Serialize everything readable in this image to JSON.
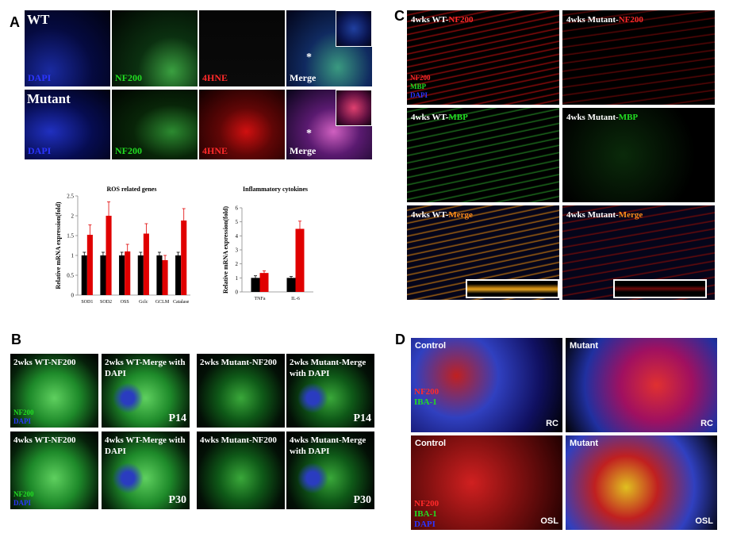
{
  "panel_labels": [
    "A",
    "B",
    "C",
    "D"
  ],
  "panel_a": {
    "marker": "*",
    "rows": [
      {
        "label": "WT",
        "channels": [
          {
            "text": "DAPI",
            "color": "#2b35ff"
          },
          {
            "text": "NF200",
            "color": "#22dd22"
          },
          {
            "text": "4HNE",
            "color": "#ff2a2a"
          },
          {
            "text": "Merge",
            "color": "#ffffff"
          }
        ]
      },
      {
        "label": "Mutant",
        "channels": [
          {
            "text": "DAPI",
            "color": "#2b35ff"
          },
          {
            "text": "NF200",
            "color": "#22dd22"
          },
          {
            "text": "4HNE",
            "color": "#ff2a2a"
          },
          {
            "text": "Merge",
            "color": "#ffffff"
          }
        ]
      }
    ]
  },
  "chart_data": [
    {
      "type": "bar",
      "title": "ROS related genes",
      "y_label": "Relative mRNA expression(fold)",
      "categories": [
        "SOD1",
        "SOD2",
        "OSS",
        "Gclc",
        "GCLM",
        "Catalase"
      ],
      "series": [
        {
          "color": "#000000",
          "values": [
            1,
            1,
            1,
            1,
            1,
            1
          ],
          "errors": [
            0.08,
            0.08,
            0.08,
            0.08,
            0.08,
            0.08
          ]
        },
        {
          "color": "#e00000",
          "values": [
            1.52,
            2.0,
            1.1,
            1.55,
            0.88,
            1.88
          ],
          "errors": [
            0.25,
            0.35,
            0.18,
            0.25,
            0.12,
            0.3
          ]
        }
      ],
      "ylim": [
        0,
        2.5
      ],
      "yticks": [
        0,
        0.5,
        1,
        1.5,
        2,
        2.5
      ]
    },
    {
      "type": "bar",
      "title": "Inflammatory cytokines",
      "y_label": "Relative mRNA expression(fold)",
      "categories": [
        "TNFa",
        "IL-6"
      ],
      "series": [
        {
          "color": "#000000",
          "values": [
            1,
            1
          ],
          "errors": [
            0.15,
            0.1
          ]
        },
        {
          "color": "#e00000",
          "values": [
            1.35,
            4.5
          ],
          "errors": [
            0.15,
            0.55
          ]
        }
      ],
      "ylim": [
        0,
        6
      ],
      "yticks": [
        0,
        1,
        2,
        3,
        4,
        5,
        6
      ]
    }
  ],
  "panel_b": {
    "images": [
      {
        "title": "2wks WT-NF200",
        "legend": [
          {
            "text": "NF200",
            "color": "#22dd22"
          },
          {
            "text": "DAPI",
            "color": "#2b35ff"
          }
        ]
      },
      {
        "title": "2wks WT-Merge with DAPI",
        "stage": "P14"
      },
      {
        "title": "2wks Mutant-NF200"
      },
      {
        "title": "2wks Mutant-Merge with DAPI",
        "stage": "P14"
      },
      {
        "title": "4wks WT-NF200",
        "legend": [
          {
            "text": "NF200",
            "color": "#22dd22"
          },
          {
            "text": "DAPI",
            "color": "#2b35ff"
          }
        ]
      },
      {
        "title": "4wks WT-Merge with DAPI",
        "stage": "P30"
      },
      {
        "title": "4wks Mutant-NF200"
      },
      {
        "title": "4wks Mutant-Merge with DAPI",
        "stage": "P30"
      }
    ]
  },
  "panel_c": {
    "images": [
      {
        "prefix": "4wks WT-",
        "marker": {
          "text": "NF200",
          "color": "#ff2a2a"
        },
        "legend": [
          {
            "text": "NF200",
            "color": "#ff2a2a"
          },
          {
            "text": "MBP",
            "color": "#22dd22"
          },
          {
            "text": "DAPI",
            "color": "#2b35ff"
          }
        ]
      },
      {
        "prefix": "4wks Mutant-",
        "marker": {
          "text": "NF200",
          "color": "#ff2a2a"
        }
      },
      {
        "prefix": "4wks WT-",
        "marker": {
          "text": "MBP",
          "color": "#22dd22"
        }
      },
      {
        "prefix": "4wks Mutant-",
        "marker": {
          "text": "MBP",
          "color": "#22dd22"
        }
      },
      {
        "prefix": "4wks WT-",
        "marker": {
          "text": "Merge",
          "color": "#ff8c1a"
        }
      },
      {
        "prefix": "4wks Mutant-",
        "marker": {
          "text": "Merge",
          "color": "#ff8c1a"
        }
      }
    ]
  },
  "panel_d": {
    "images": [
      {
        "group": "Control",
        "site": "RC",
        "legend": [
          {
            "text": "NF200",
            "color": "#ff2a2a"
          },
          {
            "text": "IBA-1",
            "color": "#22dd22"
          }
        ]
      },
      {
        "group": "Mutant",
        "site": "RC"
      },
      {
        "group": "Control",
        "site": "OSL",
        "legend": [
          {
            "text": "NF200",
            "color": "#ff2a2a"
          },
          {
            "text": "IBA-1",
            "color": "#22dd22"
          },
          {
            "text": "DAPI",
            "color": "#2b35ff"
          }
        ]
      },
      {
        "group": "Mutant",
        "site": "OSL"
      }
    ]
  }
}
